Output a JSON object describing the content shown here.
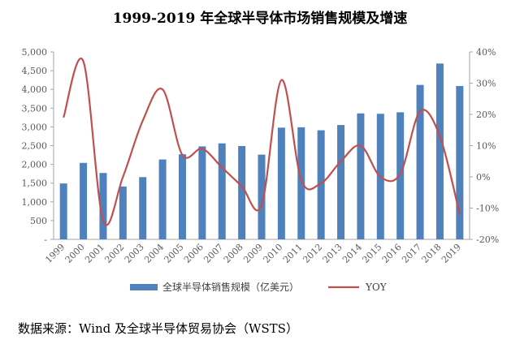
{
  "chart_data": {
    "type": "bar",
    "title": "1999-2019 年全球半导体市场销售规模及增速",
    "categories": [
      "1999",
      "2000",
      "2001",
      "2002",
      "2003",
      "2004",
      "2005",
      "2006",
      "2007",
      "2008",
      "2009",
      "2010",
      "2011",
      "2012",
      "2013",
      "2014",
      "2015",
      "2016",
      "2017",
      "2018",
      "2019"
    ],
    "series": [
      {
        "name": "全球半导体销售规模（亿美元）",
        "type": "bar",
        "axis": "left",
        "color": "#4f81bd",
        "values": [
          1490,
          2040,
          1770,
          1410,
          1660,
          2130,
          2270,
          2480,
          2560,
          2490,
          2260,
          2980,
          2990,
          2910,
          3050,
          3360,
          3350,
          3390,
          4120,
          4690,
          4090
        ]
      },
      {
        "name": "YOY",
        "type": "line",
        "axis": "right",
        "color": "#c0504d",
        "values": [
          19,
          37,
          -14,
          0,
          18,
          28,
          7,
          9,
          3,
          -3,
          -9,
          31,
          -1,
          -2,
          5,
          10,
          0,
          1,
          21,
          13,
          -12
        ]
      }
    ],
    "ylim": [
      0,
      5000
    ],
    "yticks": [
      "-",
      "500",
      "1,000",
      "1,500",
      "2,000",
      "2,500",
      "3,000",
      "3,500",
      "4,000",
      "4,500",
      "5,000"
    ],
    "y2lim": [
      -20,
      40
    ],
    "y2ticks": [
      "-20%",
      "-10%",
      "0%",
      "10%",
      "20%",
      "30%",
      "40%"
    ],
    "xlabel": "",
    "ylabel": "",
    "grid": false,
    "legend_position": "bottom"
  },
  "source_note": "数据来源：Wind 及全球半导体贸易协会（WSTS）"
}
